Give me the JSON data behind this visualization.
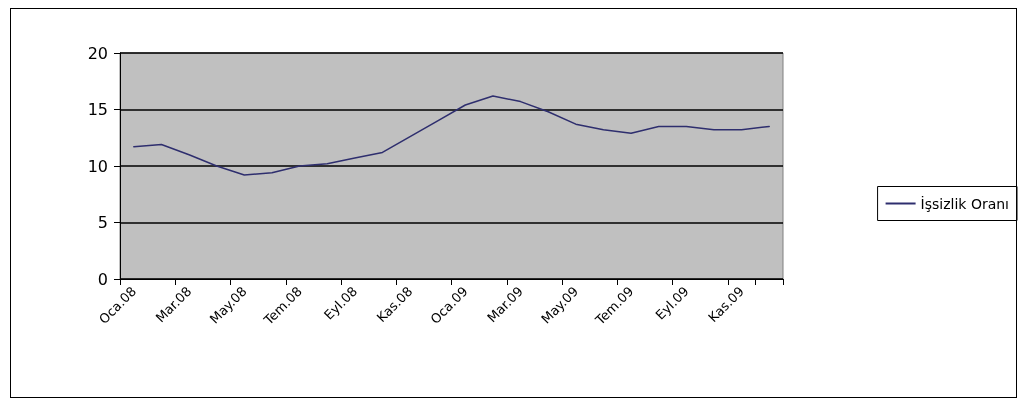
{
  "chart_data": {
    "type": "line",
    "categories": [
      "Oca.08",
      null,
      "Mar.08",
      null,
      "May.08",
      null,
      "Tem.08",
      null,
      "Eyl.08",
      null,
      "Kas.08",
      null,
      "Oca.09",
      null,
      "Mar.09",
      null,
      "May.09",
      null,
      "Tem.09",
      null,
      "Eyl.09",
      null,
      "Kas.09",
      null
    ],
    "series": [
      {
        "name": "İşsizlik Oranı",
        "color": "#2e2e6e",
        "values": [
          11.7,
          11.9,
          11.0,
          10.0,
          9.2,
          9.4,
          10.0,
          10.2,
          10.7,
          11.2,
          12.6,
          14.0,
          15.4,
          16.2,
          15.7,
          14.8,
          13.7,
          13.2,
          12.9,
          13.5,
          13.5,
          13.2,
          13.2,
          13.5
        ]
      }
    ],
    "ylim": [
      0,
      20
    ],
    "yticks": [
      0,
      5,
      10,
      15,
      20
    ],
    "grid": "y",
    "legend": "right",
    "marker": "none",
    "line_style": "solid"
  }
}
